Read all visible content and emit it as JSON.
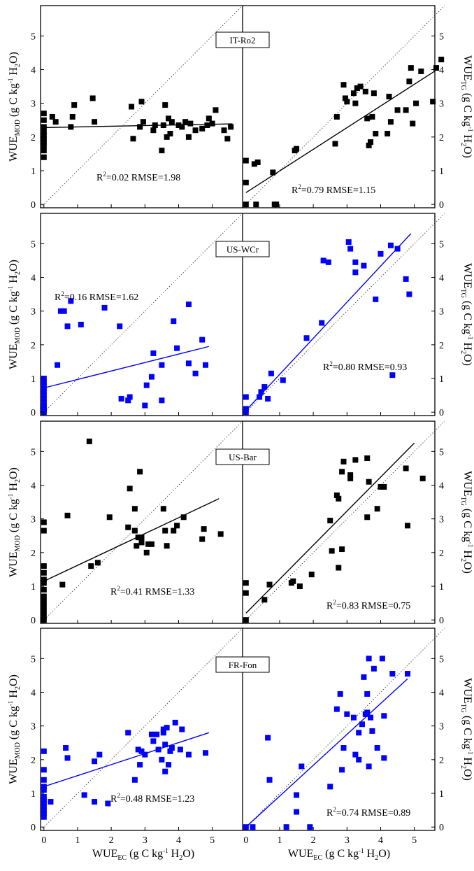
{
  "axes": {
    "xlabel": {
      "base": "WUE",
      "sub": "EC",
      "rest": " (g C kg",
      "sup": "-1",
      "tail": " H",
      "sub2": "2",
      "end": "O)"
    },
    "ylabel_left": {
      "base": "WUE",
      "sub": "MOD",
      "rest": " (g C kg",
      "sup": "-1",
      "tail": " H",
      "sub2": "2",
      "end": "O)"
    },
    "ylabel_right": {
      "base": "WUE",
      "sub": "TG",
      "rest": " (g C kg",
      "sup": "-1",
      "tail": " H",
      "sub2": "2",
      "end": "O)"
    },
    "xticks": [
      "0",
      "1",
      "2",
      "3",
      "4",
      "5"
    ],
    "yticks": [
      "0",
      "1",
      "2",
      "3",
      "4",
      "5"
    ],
    "xlim": [
      -0.1,
      5.9
    ],
    "ylim": [
      -0.1,
      5.9
    ]
  },
  "chart_data": [
    {
      "type": "scatter",
      "site": "IT-Ro2",
      "color": "#000000",
      "model": "MOD",
      "r2_label": "R",
      "r2_sup": "2",
      "r2_value": "=0.02",
      "rmse_text": "RMSE=1.98",
      "line": [
        [
          0,
          2.28
        ],
        [
          5.6,
          2.39
        ]
      ],
      "points": [
        [
          0,
          1.4
        ],
        [
          0,
          1.6
        ],
        [
          0,
          1.75
        ],
        [
          0,
          1.85
        ],
        [
          0,
          1.95
        ],
        [
          0,
          2.05
        ],
        [
          0,
          2.15
        ],
        [
          0,
          2.3
        ],
        [
          0,
          2.5
        ],
        [
          0,
          2.7
        ],
        [
          0.25,
          2.6
        ],
        [
          0.35,
          2.45
        ],
        [
          0.8,
          2.3
        ],
        [
          0.85,
          2.6
        ],
        [
          0.9,
          2.95
        ],
        [
          1.45,
          3.15
        ],
        [
          1.5,
          2.45
        ],
        [
          2.6,
          2.9
        ],
        [
          2.65,
          1.95
        ],
        [
          2.85,
          2.3
        ],
        [
          2.9,
          3.05
        ],
        [
          2.95,
          2.45
        ],
        [
          3.25,
          2.2
        ],
        [
          3.3,
          2.35
        ],
        [
          3.5,
          1.6
        ],
        [
          3.55,
          2.35
        ],
        [
          3.6,
          2.95
        ],
        [
          3.65,
          2.0
        ],
        [
          3.7,
          2.55
        ],
        [
          3.75,
          2.1
        ],
        [
          3.8,
          2.45
        ],
        [
          4.0,
          2.35
        ],
        [
          4.1,
          2.3
        ],
        [
          4.2,
          2.45
        ],
        [
          4.3,
          2.0
        ],
        [
          4.35,
          2.4
        ],
        [
          4.5,
          2.2
        ],
        [
          4.7,
          2.25
        ],
        [
          4.85,
          2.35
        ],
        [
          4.9,
          2.55
        ],
        [
          5.0,
          2.4
        ],
        [
          5.1,
          2.8
        ],
        [
          5.35,
          2.2
        ],
        [
          5.45,
          1.95
        ],
        [
          5.55,
          2.3
        ]
      ]
    },
    {
      "type": "scatter",
      "site": "IT-Ro2",
      "color": "#000000",
      "model": "TG",
      "r2_label": "R",
      "r2_sup": "2",
      "r2_value": "=0.79",
      "rmse_text": "RMSE=1.15",
      "line": [
        [
          0,
          0.35
        ],
        [
          5.6,
          3.95
        ]
      ],
      "points": [
        [
          0,
          0
        ],
        [
          0,
          0.65
        ],
        [
          0,
          1.3
        ],
        [
          0.25,
          1.2
        ],
        [
          0.35,
          1.25
        ],
        [
          0.3,
          0
        ],
        [
          0.8,
          0.95
        ],
        [
          0.85,
          0
        ],
        [
          0.9,
          0
        ],
        [
          1.45,
          1.6
        ],
        [
          1.5,
          1.65
        ],
        [
          2.65,
          1.8
        ],
        [
          2.7,
          2.6
        ],
        [
          2.9,
          3.55
        ],
        [
          2.95,
          3.15
        ],
        [
          3.0,
          3.05
        ],
        [
          3.2,
          3.3
        ],
        [
          3.25,
          3.0
        ],
        [
          3.3,
          3.45
        ],
        [
          3.4,
          3.5
        ],
        [
          3.55,
          3.35
        ],
        [
          3.6,
          2.55
        ],
        [
          3.65,
          1.75
        ],
        [
          3.7,
          1.85
        ],
        [
          3.75,
          2.6
        ],
        [
          3.8,
          3.3
        ],
        [
          3.85,
          2.1
        ],
        [
          4.2,
          2.1
        ],
        [
          4.25,
          3.2
        ],
        [
          4.3,
          2.45
        ],
        [
          4.5,
          2.8
        ],
        [
          4.75,
          2.8
        ],
        [
          4.85,
          3.65
        ],
        [
          4.9,
          4.05
        ],
        [
          4.95,
          2.4
        ],
        [
          5.05,
          3.0
        ],
        [
          5.2,
          3.95
        ],
        [
          5.55,
          3.05
        ],
        [
          5.65,
          4.05
        ],
        [
          5.8,
          4.3
        ]
      ]
    },
    {
      "type": "scatter",
      "site": "US-WCr",
      "color": "#0000ff",
      "model": "MOD",
      "r2_label": "R",
      "r2_sup": "2",
      "r2_value": "=0.16",
      "rmse_text": "RMSE=1.62",
      "line": [
        [
          0,
          0.72
        ],
        [
          4.9,
          1.95
        ]
      ],
      "points": [
        [
          0,
          0
        ],
        [
          0,
          0.05
        ],
        [
          0,
          0.1
        ],
        [
          0,
          0.15
        ],
        [
          0,
          0.2
        ],
        [
          0,
          0.3
        ],
        [
          0,
          0.4
        ],
        [
          0,
          0.5
        ],
        [
          0,
          0.6
        ],
        [
          0,
          0.7
        ],
        [
          0,
          0.8
        ],
        [
          0,
          0.9
        ],
        [
          0,
          1.0
        ],
        [
          0.4,
          1.4
        ],
        [
          0.5,
          3.0
        ],
        [
          0.6,
          3.0
        ],
        [
          0.7,
          2.55
        ],
        [
          0.8,
          3.3
        ],
        [
          1.1,
          2.6
        ],
        [
          1.8,
          3.1
        ],
        [
          2.25,
          2.55
        ],
        [
          2.3,
          0.4
        ],
        [
          2.5,
          0.35
        ],
        [
          2.55,
          0.45
        ],
        [
          3.0,
          0.2
        ],
        [
          3.05,
          0.8
        ],
        [
          3.2,
          1.05
        ],
        [
          3.25,
          1.75
        ],
        [
          3.5,
          1.4
        ],
        [
          3.5,
          0.35
        ],
        [
          3.85,
          2.7
        ],
        [
          3.95,
          1.9
        ],
        [
          4.3,
          3.2
        ],
        [
          4.3,
          1.45
        ],
        [
          4.5,
          1.15
        ],
        [
          4.7,
          2.15
        ],
        [
          4.8,
          1.4
        ]
      ]
    },
    {
      "type": "scatter",
      "site": "US-WCr",
      "color": "#0000ff",
      "model": "TG",
      "r2_label": "R",
      "r2_sup": "2",
      "r2_value": "=0.80",
      "rmse_text": "RMSE=0.93",
      "line": [
        [
          0,
          0.05
        ],
        [
          4.9,
          5.3
        ]
      ],
      "points": [
        [
          0,
          0
        ],
        [
          0,
          0.1
        ],
        [
          0,
          0.45
        ],
        [
          0.4,
          0.45
        ],
        [
          0.45,
          0.6
        ],
        [
          0.55,
          0.75
        ],
        [
          0.65,
          0.4
        ],
        [
          0.75,
          1.15
        ],
        [
          1.1,
          0.95
        ],
        [
          1.8,
          2.2
        ],
        [
          2.25,
          2.65
        ],
        [
          2.3,
          4.5
        ],
        [
          2.45,
          4.45
        ],
        [
          3.05,
          5.05
        ],
        [
          3.1,
          4.85
        ],
        [
          3.25,
          4.15
        ],
        [
          3.25,
          4.45
        ],
        [
          3.5,
          4.35
        ],
        [
          3.85,
          3.35
        ],
        [
          4.0,
          4.7
        ],
        [
          4.3,
          4.95
        ],
        [
          4.35,
          1.1
        ],
        [
          4.5,
          4.85
        ],
        [
          4.75,
          3.95
        ],
        [
          4.85,
          3.5
        ]
      ]
    },
    {
      "type": "scatter",
      "site": "US-Bar",
      "color": "#000000",
      "model": "MOD",
      "r2_label": "R",
      "r2_sup": "2",
      "r2_value": "=0.41",
      "rmse_text": "RMSE=1.33",
      "line": [
        [
          0,
          1.15
        ],
        [
          5.2,
          3.6
        ]
      ],
      "points": [
        [
          0,
          0
        ],
        [
          0,
          0.1
        ],
        [
          0,
          0.25
        ],
        [
          0,
          0.4
        ],
        [
          0,
          0.55
        ],
        [
          0,
          0.7
        ],
        [
          0,
          0.9
        ],
        [
          0,
          1.1
        ],
        [
          0,
          1.2
        ],
        [
          0,
          1.4
        ],
        [
          0,
          1.6
        ],
        [
          0,
          2.65
        ],
        [
          0,
          2.9
        ],
        [
          0.55,
          1.05
        ],
        [
          0.7,
          3.1
        ],
        [
          1.35,
          5.3
        ],
        [
          1.4,
          1.6
        ],
        [
          1.6,
          1.7
        ],
        [
          1.95,
          3.05
        ],
        [
          2.5,
          2.75
        ],
        [
          2.55,
          3.9
        ],
        [
          2.7,
          2.65
        ],
        [
          2.7,
          3.3
        ],
        [
          2.75,
          2.2
        ],
        [
          2.8,
          2.45
        ],
        [
          2.85,
          4.4
        ],
        [
          2.9,
          2.45
        ],
        [
          2.9,
          2.3
        ],
        [
          3.05,
          2.0
        ],
        [
          3.1,
          2.25
        ],
        [
          3.2,
          2.25
        ],
        [
          3.55,
          3.3
        ],
        [
          3.6,
          2.65
        ],
        [
          3.65,
          2.2
        ],
        [
          3.85,
          2.65
        ],
        [
          3.95,
          2.8
        ],
        [
          4.15,
          3.05
        ],
        [
          4.7,
          2.4
        ],
        [
          4.75,
          2.7
        ],
        [
          5.25,
          2.55
        ]
      ]
    },
    {
      "type": "scatter",
      "site": "US-Bar",
      "color": "#000000",
      "model": "TG",
      "r2_label": "R",
      "r2_sup": "2",
      "r2_value": "=0.83",
      "rmse_text": "RMSE=0.75",
      "line": [
        [
          0,
          0.2
        ],
        [
          5.0,
          5.25
        ]
      ],
      "points": [
        [
          0,
          0
        ],
        [
          0,
          0.8
        ],
        [
          0,
          1.1
        ],
        [
          0.55,
          0.6
        ],
        [
          0.7,
          1.05
        ],
        [
          1.35,
          1.1
        ],
        [
          1.4,
          1.15
        ],
        [
          1.6,
          1.0
        ],
        [
          1.95,
          1.35
        ],
        [
          2.5,
          2.95
        ],
        [
          2.55,
          2.05
        ],
        [
          2.7,
          3.7
        ],
        [
          2.75,
          3.6
        ],
        [
          2.75,
          1.55
        ],
        [
          2.85,
          2.1
        ],
        [
          2.85,
          4.4
        ],
        [
          2.9,
          4.7
        ],
        [
          3.1,
          4.3
        ],
        [
          3.1,
          4.2
        ],
        [
          3.25,
          4.75
        ],
        [
          3.6,
          4.8
        ],
        [
          3.6,
          3.05
        ],
        [
          3.65,
          4.1
        ],
        [
          3.9,
          3.3
        ],
        [
          4.0,
          3.95
        ],
        [
          4.1,
          3.95
        ],
        [
          4.75,
          4.5
        ],
        [
          4.8,
          2.8
        ],
        [
          5.25,
          4.2
        ]
      ]
    },
    {
      "type": "scatter",
      "site": "FR-Fon",
      "color": "#0000ff",
      "model": "MOD",
      "r2_label": "R",
      "r2_sup": "2",
      "r2_value": "=0.48",
      "rmse_text": "RMSE=1.23",
      "line": [
        [
          0,
          1.2
        ],
        [
          4.9,
          2.8
        ]
      ],
      "points": [
        [
          0,
          0.3
        ],
        [
          0,
          0.4
        ],
        [
          0,
          0.5
        ],
        [
          0,
          0.6
        ],
        [
          0,
          0.7
        ],
        [
          0,
          0.8
        ],
        [
          0,
          0.9
        ],
        [
          0,
          1.1
        ],
        [
          0,
          1.2
        ],
        [
          0,
          1.4
        ],
        [
          0,
          1.7
        ],
        [
          0,
          2.25
        ],
        [
          0.2,
          0.75
        ],
        [
          0.65,
          2.35
        ],
        [
          0.7,
          2.05
        ],
        [
          1.2,
          0.95
        ],
        [
          1.5,
          0.75
        ],
        [
          1.5,
          1.95
        ],
        [
          1.65,
          2.15
        ],
        [
          1.9,
          0.7
        ],
        [
          2.5,
          2.8
        ],
        [
          2.7,
          1.4
        ],
        [
          2.8,
          2.3
        ],
        [
          2.85,
          1.85
        ],
        [
          2.9,
          2.25
        ],
        [
          3.0,
          2.15
        ],
        [
          3.2,
          2.75
        ],
        [
          3.25,
          2.55
        ],
        [
          3.35,
          2.75
        ],
        [
          3.4,
          2.3
        ],
        [
          3.5,
          2.0
        ],
        [
          3.55,
          2.9
        ],
        [
          3.55,
          2.8
        ],
        [
          3.6,
          1.65
        ],
        [
          3.6,
          2.45
        ],
        [
          3.65,
          2.95
        ],
        [
          3.7,
          1.85
        ],
        [
          3.75,
          2.25
        ],
        [
          3.8,
          2.35
        ],
        [
          3.9,
          3.1
        ],
        [
          4.05,
          2.3
        ],
        [
          4.1,
          2.9
        ],
        [
          4.3,
          2.15
        ],
        [
          4.8,
          2.2
        ]
      ]
    },
    {
      "type": "scatter",
      "site": "FR-Fon",
      "color": "#0000ff",
      "model": "TG",
      "r2_label": "R",
      "r2_sup": "2",
      "r2_value": "=0.74",
      "rmse_text": "RMSE=0.89",
      "line": [
        [
          0,
          0
        ],
        [
          4.8,
          4.4
        ]
      ],
      "points": [
        [
          0,
          0
        ],
        [
          0.2,
          0
        ],
        [
          0.65,
          2.65
        ],
        [
          0.7,
          1.4
        ],
        [
          1.2,
          0
        ],
        [
          1.5,
          0.45
        ],
        [
          1.5,
          0.95
        ],
        [
          1.65,
          1.8
        ],
        [
          1.9,
          0
        ],
        [
          2.5,
          1.2
        ],
        [
          2.7,
          3.5
        ],
        [
          2.8,
          3.95
        ],
        [
          2.85,
          1.7
        ],
        [
          2.9,
          2.35
        ],
        [
          3.0,
          3.35
        ],
        [
          3.2,
          3.25
        ],
        [
          3.25,
          2.15
        ],
        [
          3.35,
          2.0
        ],
        [
          3.35,
          2.8
        ],
        [
          3.45,
          3.05
        ],
        [
          3.5,
          4.45
        ],
        [
          3.55,
          3.35
        ],
        [
          3.6,
          3.4
        ],
        [
          3.6,
          3.95
        ],
        [
          3.65,
          5.0
        ],
        [
          3.65,
          1.8
        ],
        [
          3.7,
          3.25
        ],
        [
          3.75,
          2.85
        ],
        [
          3.8,
          4.7
        ],
        [
          3.9,
          2.35
        ],
        [
          4.05,
          5.0
        ],
        [
          4.1,
          3.3
        ],
        [
          4.1,
          2.05
        ],
        [
          4.35,
          4.55
        ],
        [
          4.8,
          4.55
        ]
      ]
    }
  ]
}
